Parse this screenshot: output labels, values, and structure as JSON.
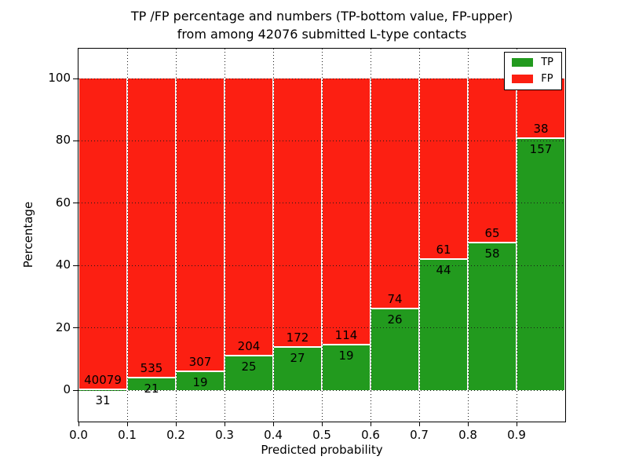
{
  "ui": {
    "title_line1": "TP /FP percentage and numbers (TP-bottom value, FP-upper)",
    "title_line2": "from among 42076 submitted L-type contacts",
    "xlabel": "Predicted probability",
    "ylabel": "Percentage"
  },
  "legend": {
    "position": "upper right",
    "items": [
      {
        "label": "TP",
        "color": "#229a1e"
      },
      {
        "label": "FP",
        "color": "#fc1f12"
      }
    ]
  },
  "colors": {
    "tp": "#229a1e",
    "fp": "#fc1f12",
    "grid": "#1a1a1a",
    "spine": "#000000",
    "background": "#ffffff",
    "text": "#000000"
  },
  "chart_data": {
    "type": "bar",
    "stacked": true,
    "title": "TP /FP percentage and numbers (TP-bottom value, FP-upper) from among 42076 submitted L-type contacts",
    "xlabel": "Predicted probability",
    "ylabel": "Percentage",
    "total_contacts": 42076,
    "categories": [
      "0.0-0.1",
      "0.1-0.2",
      "0.2-0.3",
      "0.3-0.4",
      "0.4-0.5",
      "0.5-0.6",
      "0.6-0.7",
      "0.7-0.8",
      "0.8-0.9",
      "0.9-1.0"
    ],
    "series": [
      {
        "name": "TP",
        "counts": [
          31,
          21,
          19,
          25,
          27,
          19,
          26,
          44,
          58,
          157
        ],
        "percent": [
          0.08,
          3.78,
          5.83,
          10.92,
          13.57,
          14.29,
          26.0,
          41.9,
          47.15,
          80.51
        ]
      },
      {
        "name": "FP",
        "counts": [
          40079,
          535,
          307,
          204,
          172,
          114,
          74,
          61,
          65,
          38
        ],
        "percent": [
          99.92,
          96.22,
          94.17,
          89.08,
          86.43,
          85.71,
          74.0,
          58.1,
          52.85,
          19.49
        ]
      }
    ],
    "x_ticks": [
      "0.0",
      "0.1",
      "0.2",
      "0.3",
      "0.4",
      "0.5",
      "0.6",
      "0.7",
      "0.8",
      "0.9"
    ],
    "y_ticks": [
      0,
      20,
      40,
      60,
      80,
      100
    ],
    "xlim": [
      0.0,
      1.0
    ],
    "ylim": [
      -10,
      110
    ],
    "grid": true,
    "grid_style": "dotted",
    "legend_position": "upper right"
  }
}
